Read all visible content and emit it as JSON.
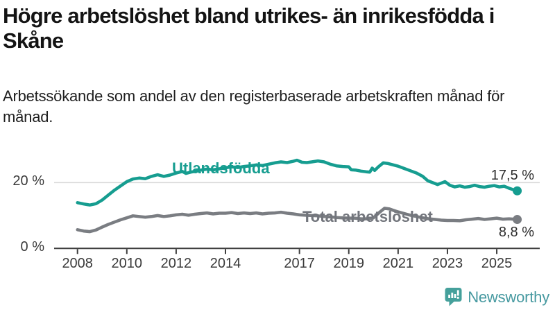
{
  "title": "Högre arbetslöshet bland utrikes- än inrikesfödda i Skåne",
  "subtitle": "Arbetssökande som andel av den registerbaserade arbetskraften månad för månad.",
  "footer": {
    "brand": "Newsworthy"
  },
  "colors": {
    "foreign_born_line": "#169d90",
    "total_line": "#7a7d82",
    "total_label": "#72757c",
    "axis": "#3d3d3d",
    "gridline": "#d9d9d9",
    "brand_teal": "#4699a0",
    "logo_icon_bg": "#45a09b"
  },
  "chart_data": {
    "type": "line",
    "unit": "%",
    "grid": "horizontal line at 20% only",
    "legend_position": "inline-labels-on-lines",
    "x_axis": {
      "tick_labels": [
        "2008",
        "2010",
        "2012",
        "2014",
        "2017",
        "2019",
        "2021",
        "2023",
        "2025"
      ],
      "tick_values": [
        2008,
        2010,
        2012,
        2014,
        2017,
        2019,
        2021,
        2023,
        2025
      ],
      "range": [
        2007.05,
        2026.6
      ]
    },
    "y_axis": {
      "ticks": [
        {
          "value": 20,
          "label": "20 %"
        },
        {
          "value": 0,
          "label": "0 %"
        }
      ],
      "range": [
        0,
        30
      ]
    },
    "series": [
      {
        "name": "Utlandsfödda",
        "color": "#169d90",
        "end_label": "17,5 %",
        "end_value": 17.5,
        "points": [
          [
            2008.0,
            13.9
          ],
          [
            2008.25,
            13.5
          ],
          [
            2008.5,
            13.2
          ],
          [
            2008.75,
            13.6
          ],
          [
            2009.0,
            14.7
          ],
          [
            2009.25,
            16.2
          ],
          [
            2009.5,
            17.7
          ],
          [
            2009.75,
            19.0
          ],
          [
            2010.0,
            20.3
          ],
          [
            2010.25,
            21.1
          ],
          [
            2010.5,
            21.4
          ],
          [
            2010.75,
            21.2
          ],
          [
            2011.0,
            21.9
          ],
          [
            2011.25,
            22.4
          ],
          [
            2011.5,
            21.9
          ],
          [
            2011.75,
            22.3
          ],
          [
            2012.0,
            22.9
          ],
          [
            2012.25,
            23.4
          ],
          [
            2012.4,
            22.8
          ],
          [
            2012.6,
            23.2
          ],
          [
            2012.75,
            23.4
          ],
          [
            2013.0,
            23.8
          ],
          [
            2013.25,
            24.1
          ],
          [
            2013.5,
            23.9
          ],
          [
            2013.75,
            24.2
          ],
          [
            2014.0,
            24.5
          ],
          [
            2014.25,
            24.8
          ],
          [
            2014.5,
            24.6
          ],
          [
            2014.75,
            24.9
          ],
          [
            2015.0,
            25.1
          ],
          [
            2015.25,
            25.4
          ],
          [
            2015.5,
            25.2
          ],
          [
            2015.75,
            25.6
          ],
          [
            2016.0,
            26.0
          ],
          [
            2016.25,
            26.3
          ],
          [
            2016.5,
            26.1
          ],
          [
            2016.75,
            26.5
          ],
          [
            2016.9,
            26.8
          ],
          [
            2017.1,
            26.2
          ],
          [
            2017.3,
            26.1
          ],
          [
            2017.5,
            26.3
          ],
          [
            2017.75,
            26.6
          ],
          [
            2018.0,
            26.3
          ],
          [
            2018.25,
            25.6
          ],
          [
            2018.5,
            25.1
          ],
          [
            2018.75,
            24.9
          ],
          [
            2019.0,
            24.8
          ],
          [
            2019.1,
            23.9
          ],
          [
            2019.3,
            23.8
          ],
          [
            2019.5,
            23.5
          ],
          [
            2019.7,
            23.3
          ],
          [
            2019.85,
            23.2
          ],
          [
            2019.95,
            24.4
          ],
          [
            2020.05,
            23.7
          ],
          [
            2020.2,
            24.8
          ],
          [
            2020.4,
            26.0
          ],
          [
            2020.6,
            25.8
          ],
          [
            2020.8,
            25.4
          ],
          [
            2021.0,
            25.0
          ],
          [
            2021.25,
            24.3
          ],
          [
            2021.5,
            23.6
          ],
          [
            2021.75,
            22.9
          ],
          [
            2022.0,
            21.9
          ],
          [
            2022.2,
            20.6
          ],
          [
            2022.4,
            20.0
          ],
          [
            2022.6,
            19.4
          ],
          [
            2022.9,
            20.3
          ],
          [
            2023.1,
            19.2
          ],
          [
            2023.3,
            18.7
          ],
          [
            2023.5,
            19.0
          ],
          [
            2023.7,
            18.6
          ],
          [
            2023.9,
            18.8
          ],
          [
            2024.1,
            19.2
          ],
          [
            2024.3,
            18.8
          ],
          [
            2024.5,
            18.6
          ],
          [
            2024.7,
            18.9
          ],
          [
            2024.9,
            19.1
          ],
          [
            2025.1,
            18.7
          ],
          [
            2025.3,
            18.9
          ],
          [
            2025.5,
            18.3
          ],
          [
            2025.65,
            17.9
          ],
          [
            2025.83,
            17.5
          ]
        ]
      },
      {
        "name": "Total arbetslöshet",
        "color": "#7a7d82",
        "end_label": "8,8 %",
        "end_value": 8.8,
        "points": [
          [
            2008.0,
            5.7
          ],
          [
            2008.25,
            5.3
          ],
          [
            2008.5,
            5.1
          ],
          [
            2008.75,
            5.6
          ],
          [
            2009.0,
            6.5
          ],
          [
            2009.25,
            7.3
          ],
          [
            2009.5,
            8.0
          ],
          [
            2009.75,
            8.7
          ],
          [
            2010.0,
            9.3
          ],
          [
            2010.25,
            9.9
          ],
          [
            2010.5,
            9.7
          ],
          [
            2010.75,
            9.5
          ],
          [
            2011.0,
            9.7
          ],
          [
            2011.25,
            10.0
          ],
          [
            2011.5,
            9.7
          ],
          [
            2011.75,
            9.9
          ],
          [
            2012.0,
            10.2
          ],
          [
            2012.25,
            10.4
          ],
          [
            2012.5,
            10.1
          ],
          [
            2012.75,
            10.4
          ],
          [
            2013.0,
            10.6
          ],
          [
            2013.25,
            10.8
          ],
          [
            2013.5,
            10.5
          ],
          [
            2013.75,
            10.7
          ],
          [
            2014.0,
            10.7
          ],
          [
            2014.25,
            10.9
          ],
          [
            2014.5,
            10.6
          ],
          [
            2014.75,
            10.8
          ],
          [
            2015.0,
            10.6
          ],
          [
            2015.25,
            10.8
          ],
          [
            2015.5,
            10.5
          ],
          [
            2015.75,
            10.7
          ],
          [
            2016.0,
            10.8
          ],
          [
            2016.25,
            11.0
          ],
          [
            2016.5,
            10.7
          ],
          [
            2016.75,
            10.5
          ],
          [
            2017.0,
            10.2
          ],
          [
            2017.25,
            10.1
          ],
          [
            2017.5,
            10.0
          ],
          [
            2017.75,
            9.9
          ],
          [
            2018.0,
            9.7
          ],
          [
            2018.25,
            9.6
          ],
          [
            2018.5,
            9.4
          ],
          [
            2018.75,
            9.3
          ],
          [
            2019.0,
            9.2
          ],
          [
            2019.25,
            9.2
          ],
          [
            2019.5,
            9.0
          ],
          [
            2019.75,
            9.0
          ],
          [
            2020.0,
            9.3
          ],
          [
            2020.25,
            11.0
          ],
          [
            2020.45,
            12.2
          ],
          [
            2020.65,
            12.0
          ],
          [
            2020.8,
            11.6
          ],
          [
            2021.0,
            11.1
          ],
          [
            2021.25,
            10.6
          ],
          [
            2021.5,
            10.1
          ],
          [
            2021.75,
            9.7
          ],
          [
            2022.0,
            9.3
          ],
          [
            2022.25,
            9.0
          ],
          [
            2022.5,
            8.8
          ],
          [
            2022.75,
            8.6
          ],
          [
            2023.0,
            8.5
          ],
          [
            2023.25,
            8.5
          ],
          [
            2023.5,
            8.4
          ],
          [
            2023.75,
            8.7
          ],
          [
            2024.0,
            8.9
          ],
          [
            2024.25,
            9.1
          ],
          [
            2024.5,
            8.8
          ],
          [
            2024.75,
            9.0
          ],
          [
            2025.0,
            9.2
          ],
          [
            2025.25,
            8.9
          ],
          [
            2025.5,
            9.0
          ],
          [
            2025.83,
            8.8
          ]
        ]
      }
    ]
  }
}
